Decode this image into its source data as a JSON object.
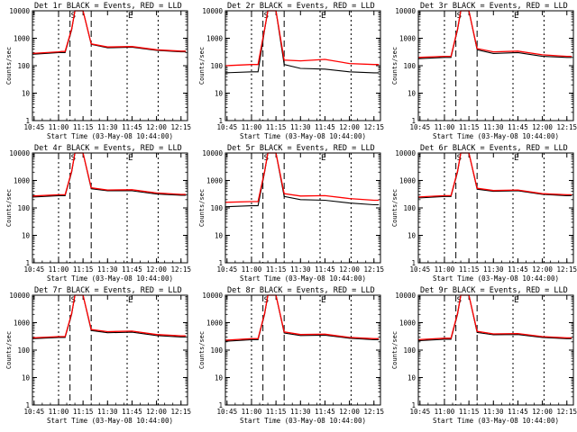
{
  "figure": {
    "ylabel": "Counts/sec",
    "xlabel": "Start Time (03-May-08 10:44:00)",
    "title_suffix": "BLACK = Events, RED = LLD",
    "x_ticks": [
      "10:45",
      "11:00",
      "11:15",
      "11:30",
      "11:45",
      "12:00",
      "12:15"
    ],
    "y_ticks": [
      "1",
      "10",
      "100",
      "1000",
      "10000"
    ],
    "marker_labels": [
      "S",
      "E"
    ],
    "colors": {
      "events": "#000000",
      "lld": "#ff0000"
    }
  },
  "chart_data": [
    {
      "type": "line",
      "title": "Det 1r",
      "x": [
        "10:44",
        "11:00",
        "11:02",
        "11:04",
        "11:08",
        "11:10",
        "11:12",
        "11:15",
        "11:20",
        "11:30",
        "11:45",
        "12:00",
        "12:15",
        "12:18"
      ],
      "series": [
        {
          "name": "BLACK = Events",
          "values": [
            260,
            300,
            300,
            300,
            2000,
            10000,
            10000,
            10000,
            600,
            450,
            470,
            360,
            320,
            320
          ]
        },
        {
          "name": "RED = LLD",
          "values": [
            280,
            320,
            330,
            330,
            2200,
            10000,
            10000,
            10000,
            620,
            480,
            500,
            380,
            340,
            340
          ]
        }
      ],
      "ylim": [
        1,
        10000
      ],
      "yscale": "log"
    },
    {
      "type": "line",
      "title": "Det 2r",
      "x": [
        "10:44",
        "11:00",
        "11:02",
        "11:04",
        "11:08",
        "11:10",
        "11:12",
        "11:15",
        "11:20",
        "11:30",
        "11:45",
        "12:00",
        "12:15",
        "12:18"
      ],
      "series": [
        {
          "name": "BLACK = Events",
          "values": [
            55,
            60,
            60,
            60,
            2000,
            10000,
            10000,
            10000,
            110,
            80,
            75,
            60,
            55,
            55
          ]
        },
        {
          "name": "RED = LLD",
          "values": [
            100,
            110,
            110,
            110,
            2200,
            10000,
            10000,
            10000,
            160,
            150,
            170,
            120,
            110,
            110
          ]
        }
      ],
      "ylim": [
        1,
        10000
      ],
      "yscale": "log"
    },
    {
      "type": "line",
      "title": "Det 3r",
      "x": [
        "10:44",
        "11:00",
        "11:02",
        "11:04",
        "11:08",
        "11:10",
        "11:12",
        "11:15",
        "11:20",
        "11:30",
        "11:45",
        "12:00",
        "12:15",
        "12:18"
      ],
      "series": [
        {
          "name": "BLACK = Events",
          "values": [
            180,
            200,
            200,
            200,
            2000,
            10000,
            10000,
            10000,
            380,
            280,
            300,
            220,
            200,
            200
          ]
        },
        {
          "name": "RED = LLD",
          "values": [
            200,
            220,
            220,
            220,
            2200,
            10000,
            10000,
            10000,
            420,
            320,
            340,
            250,
            220,
            220
          ]
        }
      ],
      "ylim": [
        1,
        10000
      ],
      "yscale": "log"
    },
    {
      "type": "line",
      "title": "Det 4r",
      "x": [
        "10:44",
        "11:00",
        "11:02",
        "11:04",
        "11:08",
        "11:10",
        "11:12",
        "11:15",
        "11:20",
        "11:30",
        "11:45",
        "12:00",
        "12:15",
        "12:18"
      ],
      "series": [
        {
          "name": "BLACK = Events",
          "values": [
            250,
            280,
            280,
            280,
            2000,
            10000,
            10000,
            10000,
            500,
            420,
            420,
            320,
            290,
            290
          ]
        },
        {
          "name": "RED = LLD",
          "values": [
            270,
            300,
            300,
            300,
            2200,
            10000,
            10000,
            10000,
            540,
            450,
            460,
            350,
            310,
            310
          ]
        }
      ],
      "ylim": [
        1,
        10000
      ],
      "yscale": "log"
    },
    {
      "type": "line",
      "title": "Det 5r",
      "x": [
        "10:44",
        "11:00",
        "11:02",
        "11:04",
        "11:08",
        "11:10",
        "11:12",
        "11:15",
        "11:20",
        "11:30",
        "11:45",
        "12:00",
        "12:15",
        "12:18"
      ],
      "series": [
        {
          "name": "BLACK = Events",
          "values": [
            110,
            120,
            120,
            120,
            2000,
            10000,
            10000,
            10000,
            260,
            200,
            190,
            150,
            130,
            130
          ]
        },
        {
          "name": "RED = LLD",
          "values": [
            160,
            170,
            170,
            170,
            2200,
            10000,
            10000,
            10000,
            330,
            270,
            280,
            220,
            190,
            190
          ]
        }
      ],
      "ylim": [
        1,
        10000
      ],
      "yscale": "log"
    },
    {
      "type": "line",
      "title": "Det 6r",
      "x": [
        "10:44",
        "11:00",
        "11:02",
        "11:04",
        "11:08",
        "11:10",
        "11:12",
        "11:15",
        "11:20",
        "11:30",
        "11:45",
        "12:00",
        "12:15",
        "12:18"
      ],
      "series": [
        {
          "name": "BLACK = Events",
          "values": [
            230,
            260,
            260,
            260,
            2000,
            10000,
            10000,
            10000,
            480,
            400,
            420,
            310,
            280,
            280
          ]
        },
        {
          "name": "RED = LLD",
          "values": [
            250,
            280,
            280,
            280,
            2200,
            10000,
            10000,
            10000,
            520,
            430,
            450,
            330,
            300,
            300
          ]
        }
      ],
      "ylim": [
        1,
        10000
      ],
      "yscale": "log"
    },
    {
      "type": "line",
      "title": "Det 7r",
      "x": [
        "10:44",
        "11:00",
        "11:02",
        "11:04",
        "11:08",
        "11:10",
        "11:12",
        "11:15",
        "11:20",
        "11:30",
        "11:45",
        "12:00",
        "12:15",
        "12:18"
      ],
      "series": [
        {
          "name": "BLACK = Events",
          "values": [
            260,
            290,
            290,
            290,
            2000,
            10000,
            10000,
            10000,
            520,
            430,
            450,
            340,
            300,
            300
          ]
        },
        {
          "name": "RED = LLD",
          "values": [
            280,
            310,
            310,
            310,
            2200,
            10000,
            10000,
            10000,
            560,
            470,
            490,
            370,
            330,
            330
          ]
        }
      ],
      "ylim": [
        1,
        10000
      ],
      "yscale": "log"
    },
    {
      "type": "line",
      "title": "Det 8r",
      "x": [
        "10:44",
        "11:00",
        "11:02",
        "11:04",
        "11:08",
        "11:10",
        "11:12",
        "11:15",
        "11:20",
        "11:30",
        "11:45",
        "12:00",
        "12:15",
        "12:18"
      ],
      "series": [
        {
          "name": "BLACK = Events",
          "values": [
            210,
            240,
            240,
            240,
            2000,
            10000,
            10000,
            10000,
            420,
            340,
            350,
            270,
            240,
            240
          ]
        },
        {
          "name": "RED = LLD",
          "values": [
            230,
            260,
            260,
            260,
            2200,
            10000,
            10000,
            10000,
            460,
            370,
            380,
            290,
            260,
            260
          ]
        }
      ],
      "ylim": [
        1,
        10000
      ],
      "yscale": "log"
    },
    {
      "type": "line",
      "title": "Det 9r",
      "x": [
        "10:44",
        "11:00",
        "11:02",
        "11:04",
        "11:08",
        "11:10",
        "11:12",
        "11:15",
        "11:20",
        "11:30",
        "11:45",
        "12:00",
        "12:15",
        "12:18"
      ],
      "series": [
        {
          "name": "BLACK = Events",
          "values": [
            220,
            250,
            250,
            250,
            2000,
            10000,
            10000,
            10000,
            440,
            360,
            370,
            290,
            260,
            260
          ]
        },
        {
          "name": "RED = LLD",
          "values": [
            240,
            270,
            270,
            270,
            2200,
            10000,
            10000,
            10000,
            480,
            390,
            400,
            310,
            280,
            280
          ]
        }
      ],
      "ylim": [
        1,
        10000
      ],
      "yscale": "log"
    }
  ]
}
